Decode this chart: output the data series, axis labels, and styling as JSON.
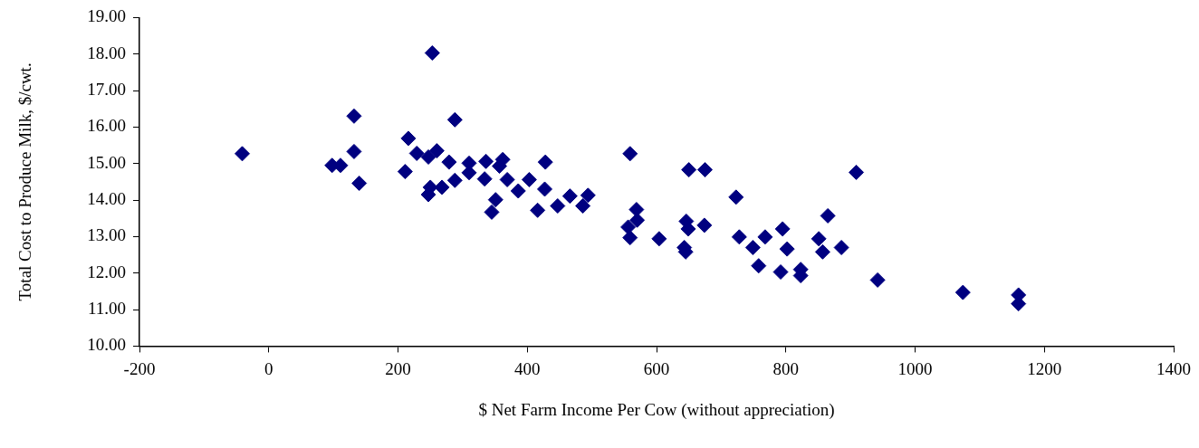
{
  "chart_data": {
    "type": "scatter",
    "xlabel": "$ Net Farm Income Per Cow (without appreciation)",
    "ylabel": "Total Cost to Produce Milk, $/cwt.",
    "marker": "diamond",
    "grid": false,
    "legend": false,
    "xlim": [
      -200,
      1400
    ],
    "xticks": [
      -200,
      0,
      200,
      400,
      600,
      800,
      1000,
      1200,
      1400
    ],
    "ylim": [
      10,
      19
    ],
    "yticks": [
      {
        "value": 10,
        "label": "10.00"
      },
      {
        "value": 11,
        "label": "11.00"
      },
      {
        "value": 12,
        "label": "12.00"
      },
      {
        "value": 13,
        "label": "13.00"
      },
      {
        "value": 14,
        "label": "14.00"
      },
      {
        "value": 15,
        "label": "15.00"
      },
      {
        "value": 16,
        "label": "16.00"
      },
      {
        "value": 17,
        "label": "17.00"
      },
      {
        "value": 18,
        "label": "18.00"
      },
      {
        "value": 19,
        "label": "19.00"
      }
    ],
    "series": [
      {
        "color": "#000080",
        "x": [
          -41,
          98,
          111,
          132,
          132,
          140,
          211,
          216,
          229,
          247,
          247,
          250,
          253,
          260,
          268,
          279,
          288,
          288,
          310,
          310,
          334,
          336,
          345,
          351,
          357,
          362,
          369,
          386,
          403,
          416,
          427,
          428,
          447,
          466,
          486,
          494,
          556,
          559,
          559,
          569,
          570,
          604,
          643,
          645,
          646,
          649,
          650,
          674,
          675,
          723,
          728,
          749,
          758,
          768,
          792,
          795,
          802,
          823,
          823,
          851,
          857,
          865,
          886,
          909,
          942,
          1074,
          1160,
          1160
        ],
        "values": [
          15.27,
          14.95,
          14.95,
          16.3,
          15.33,
          14.46,
          14.78,
          15.69,
          15.28,
          15.18,
          14.15,
          14.35,
          18.03,
          15.35,
          14.35,
          15.04,
          16.2,
          14.54,
          15.01,
          14.75,
          14.58,
          15.06,
          13.67,
          14.01,
          14.93,
          15.11,
          14.56,
          14.25,
          14.56,
          13.72,
          14.3,
          15.04,
          13.84,
          14.11,
          13.84,
          14.13,
          13.26,
          15.27,
          12.97,
          13.74,
          13.45,
          12.94,
          12.7,
          12.58,
          13.42,
          13.21,
          14.83,
          13.31,
          14.83,
          14.08,
          12.99,
          12.7,
          12.2,
          12.99,
          12.03,
          13.21,
          12.66,
          12.1,
          11.93,
          12.94,
          12.58,
          13.57,
          12.7,
          14.76,
          11.81,
          11.47,
          11.4,
          11.16
        ]
      }
    ]
  }
}
